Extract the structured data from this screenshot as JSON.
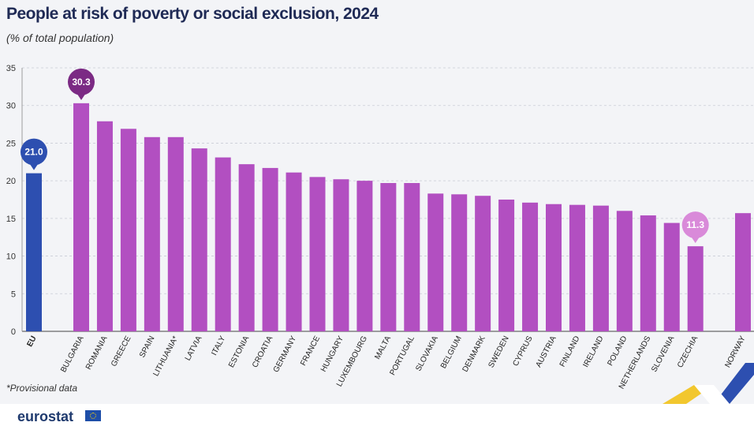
{
  "title": "People at risk of poverty or social exclusion, 2024",
  "subtitle": "(% of total population)",
  "footnote": "*Provisional data",
  "brand": "eurostat",
  "colors": {
    "eu_bar": "#2d4fb0",
    "country_bar": "#b24fc1",
    "callout_eu": "#2d4fb0",
    "callout_max": "#7b2a84",
    "callout_min": "#d98ad9"
  },
  "chart_data": {
    "type": "bar",
    "categories": [
      "EU",
      "BULGARIA",
      "ROMANIA",
      "GREECE",
      "SPAIN",
      "LITHUANIA*",
      "LATVIA",
      "ITALY",
      "ESTONIA",
      "CROATIA",
      "GERMANY",
      "FRANCE",
      "HUNGARY",
      "LUXEMBOURG",
      "MALTA",
      "PORTUGAL",
      "SLOVAKIA",
      "BELGIUM",
      "DENMARK",
      "SWEDEN",
      "CYPRUS",
      "AUSTRIA",
      "FINLAND",
      "IRELAND",
      "POLAND",
      "NETHERLANDS",
      "SLOVENIA",
      "CZECHIA",
      "NORWAY"
    ],
    "values": [
      21.0,
      30.3,
      27.9,
      26.9,
      25.8,
      25.8,
      24.3,
      23.1,
      22.2,
      21.7,
      21.1,
      20.5,
      20.2,
      20.0,
      19.7,
      19.7,
      18.3,
      18.2,
      18.0,
      17.5,
      17.1,
      16.9,
      16.8,
      16.7,
      16.0,
      15.4,
      14.4,
      11.3,
      15.7
    ],
    "ylim": [
      0,
      35
    ],
    "yticks": [
      0,
      5,
      10,
      15,
      20,
      25,
      30,
      35
    ],
    "grid": true,
    "callouts": [
      {
        "category": "EU",
        "label": "21.0",
        "color_key": "callout_eu"
      },
      {
        "category": "BULGARIA",
        "label": "30.3",
        "color_key": "callout_max"
      },
      {
        "category": "CZECHIA",
        "label": "11.3",
        "color_key": "callout_min"
      }
    ]
  }
}
